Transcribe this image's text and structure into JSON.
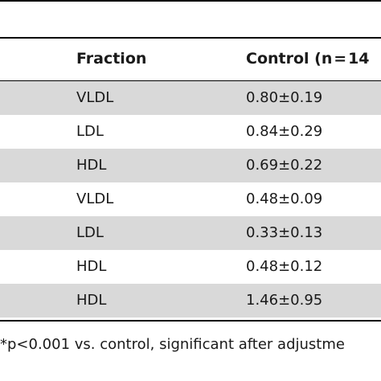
{
  "table": {
    "headers": {
      "fraction": "Fraction",
      "control": "Control (n = 14"
    },
    "rows": [
      {
        "fraction": "VLDL",
        "control": "0.80±0.19"
      },
      {
        "fraction": "LDL",
        "control": "0.84±0.29"
      },
      {
        "fraction": "HDL",
        "control": "0.69±0.22"
      },
      {
        "fraction": "VLDL",
        "control": "0.48±0.09"
      },
      {
        "fraction": "LDL",
        "control": "0.33±0.13"
      },
      {
        "fraction": "HDL",
        "control": "0.48±0.12"
      },
      {
        "fraction": "HDL",
        "control": "1.46±0.95"
      }
    ]
  },
  "footnote": "*p<0.001 vs. control, significant after adjustme"
}
